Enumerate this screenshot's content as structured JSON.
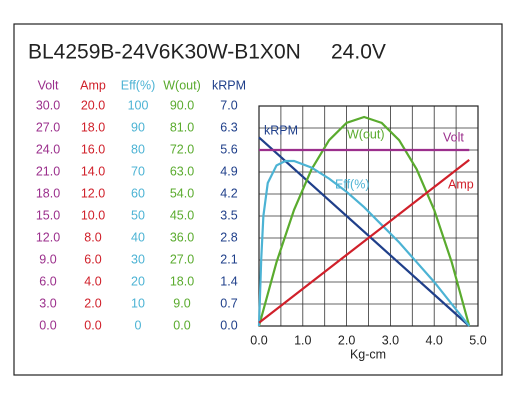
{
  "chart_data": {
    "type": "line",
    "title": "BL4259B-24V6K30W-B1X0N",
    "subtitle": "24.0V",
    "x_label": "Kg-cm",
    "xlim": [
      0,
      5
    ],
    "xticks": [
      {
        "value": 0,
        "label": "0.0"
      },
      {
        "value": 1,
        "label": "1.0"
      },
      {
        "value": 2,
        "label": "2.0"
      },
      {
        "value": 3,
        "label": "3.0"
      },
      {
        "value": 4,
        "label": "4.0"
      },
      {
        "value": 5,
        "label": "5.0"
      }
    ],
    "xminorticks": [
      0.5,
      1.5,
      2.5,
      3.5,
      4.5
    ],
    "grid": true,
    "axes": [
      {
        "label": "Volt",
        "color": "#9b2f8c",
        "ylim": [
          0,
          30
        ],
        "yticks": [
          {
            "value": 0,
            "label": "0.0"
          },
          {
            "value": 3,
            "label": "3.0"
          },
          {
            "value": 6,
            "label": "6.0"
          },
          {
            "value": 9,
            "label": "9.0"
          },
          {
            "value": 12,
            "label": "12.0"
          },
          {
            "value": 15,
            "label": "15.0"
          },
          {
            "value": 18,
            "label": "18.0"
          },
          {
            "value": 21,
            "label": "21.0"
          },
          {
            "value": 24,
            "label": "24.0"
          },
          {
            "value": 27,
            "label": "27.0"
          },
          {
            "value": 30,
            "label": "30.0"
          }
        ]
      },
      {
        "label": "Amp",
        "color": "#d0202a",
        "ylim": [
          0,
          20
        ],
        "yticks": [
          {
            "value": 0,
            "label": "0.0"
          },
          {
            "value": 2,
            "label": "2.0"
          },
          {
            "value": 4,
            "label": "4.0"
          },
          {
            "value": 6,
            "label": "6.0"
          },
          {
            "value": 8,
            "label": "8.0"
          },
          {
            "value": 10,
            "label": "10.0"
          },
          {
            "value": 12,
            "label": "12.0"
          },
          {
            "value": 14,
            "label": "14.0"
          },
          {
            "value": 16,
            "label": "16.0"
          },
          {
            "value": 18,
            "label": "18.0"
          },
          {
            "value": 20,
            "label": "20.0"
          }
        ]
      },
      {
        "label": "Eff(%)",
        "color": "#4cb3d4",
        "ylim": [
          0,
          100
        ],
        "yticks": [
          0,
          10,
          20,
          30,
          40,
          50,
          60,
          70,
          80,
          90,
          100
        ]
      },
      {
        "label": "W(out)",
        "color": "#5aab2e",
        "ylim": [
          0,
          90
        ],
        "yticks": [
          {
            "value": 0,
            "label": "0.0"
          },
          {
            "value": 9,
            "label": "9.0"
          },
          {
            "value": 18,
            "label": "18.0"
          },
          {
            "value": 27,
            "label": "27.0"
          },
          {
            "value": 36,
            "label": "36.0"
          },
          {
            "value": 45,
            "label": "45.0"
          },
          {
            "value": 54,
            "label": "54.0"
          },
          {
            "value": 63,
            "label": "63.0"
          },
          {
            "value": 72,
            "label": "72.0"
          },
          {
            "value": 81,
            "label": "81.0"
          },
          {
            "value": 90,
            "label": "90.0"
          }
        ]
      },
      {
        "label": "kRPM",
        "color": "#1f3f8a",
        "ylim": [
          0,
          7
        ],
        "yticks": [
          {
            "value": 0,
            "label": "0.0"
          },
          {
            "value": 0.7,
            "label": "0.7"
          },
          {
            "value": 1.4,
            "label": "1.4"
          },
          {
            "value": 2.1,
            "label": "2.1"
          },
          {
            "value": 2.8,
            "label": "2.8"
          },
          {
            "value": 3.5,
            "label": "3.5"
          },
          {
            "value": 4.2,
            "label": "4.2"
          },
          {
            "value": 4.9,
            "label": "4.9"
          },
          {
            "value": 5.6,
            "label": "5.6"
          },
          {
            "value": 6.3,
            "label": "6.3"
          },
          {
            "value": 7,
            "label": "7.0"
          }
        ]
      }
    ],
    "series": [
      {
        "name": "kRPM",
        "axis": 4,
        "color": "#1f3f8a",
        "x": [
          0,
          4.8
        ],
        "values": [
          6.0,
          0
        ]
      },
      {
        "name": "W(out)",
        "axis": 3,
        "color": "#5aab2e",
        "x": [
          0,
          0.4,
          0.8,
          1.2,
          1.6,
          2.0,
          2.4,
          2.8,
          3.2,
          3.6,
          4.0,
          4.4,
          4.8
        ],
        "values": [
          0,
          26.1,
          47.5,
          64.1,
          76.0,
          83.1,
          85.5,
          83.1,
          76.0,
          64.1,
          47.5,
          26.1,
          0
        ]
      },
      {
        "name": "Volt",
        "axis": 0,
        "color": "#9b2f8c",
        "x": [
          0,
          4.8
        ],
        "values": [
          24,
          24
        ]
      },
      {
        "name": "Eff(%)",
        "axis": 2,
        "color": "#4cb3d4",
        "x": [
          0,
          0.05,
          0.1,
          0.2,
          0.4,
          0.6,
          0.8,
          1.2,
          1.6,
          2.0,
          2.4,
          2.8,
          3.2,
          3.6,
          4.0,
          4.4,
          4.8
        ],
        "values": [
          0,
          30,
          50,
          65,
          73,
          75,
          75,
          72,
          67,
          61,
          54,
          46,
          38,
          29,
          20,
          10,
          0
        ]
      },
      {
        "name": "Amp",
        "axis": 1,
        "color": "#d0202a",
        "x": [
          0,
          4.8
        ],
        "values": [
          0.3,
          15.1
        ]
      }
    ]
  }
}
